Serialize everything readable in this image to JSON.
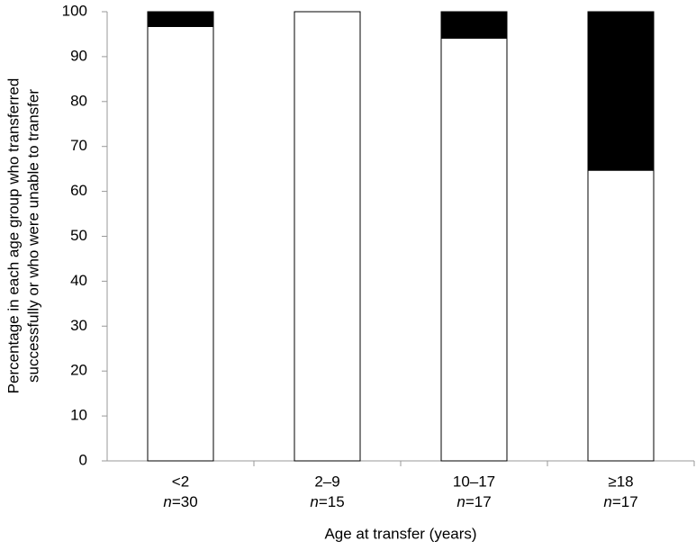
{
  "chart_data": {
    "type": "stacked_bar",
    "y_label": [
      "Percentage in each age group who transferred",
      "successfully or who were unable to transfer"
    ],
    "x_label": "Age at transfer (years)",
    "categories": [
      "<2",
      "2–9",
      "10–17",
      "≥18"
    ],
    "sample_sizes": [
      "n=30",
      "n=15",
      "n=17",
      "n=17"
    ],
    "series": [
      {
        "color": "#ffffff",
        "values": [
          96.7,
          100,
          94.1,
          64.7
        ]
      },
      {
        "color": "#000000",
        "values": [
          3.3,
          0,
          5.9,
          35.3
        ]
      }
    ],
    "ylim": [
      0,
      100
    ],
    "yticks": [
      0,
      10,
      20,
      30,
      40,
      50,
      60,
      70,
      80,
      90,
      100
    ],
    "grid": false
  }
}
